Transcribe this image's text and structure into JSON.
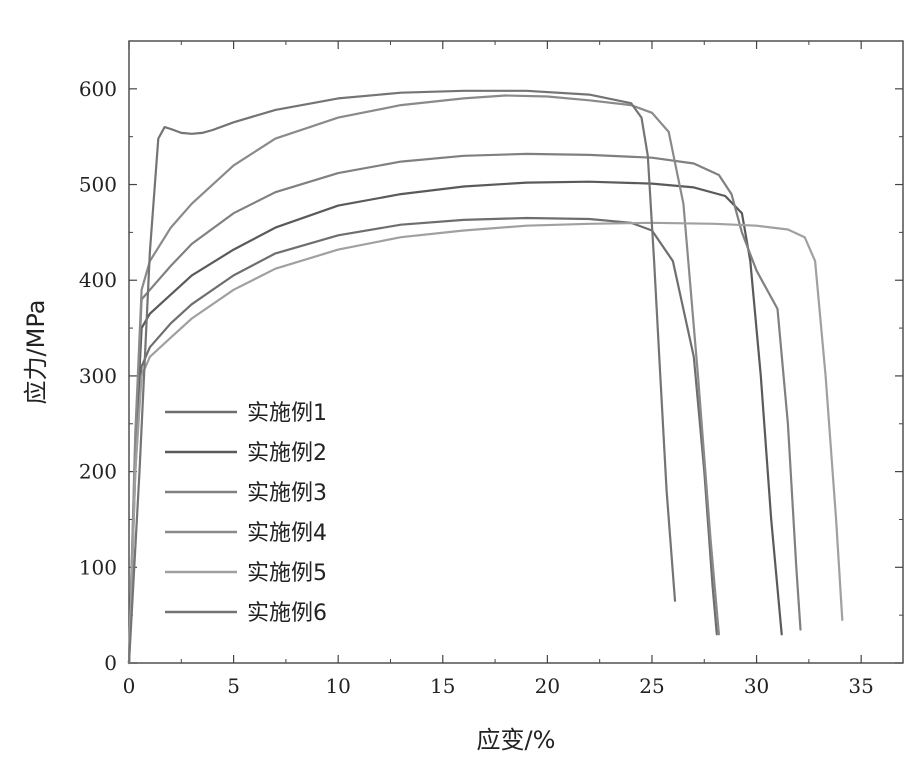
{
  "chart_data": {
    "type": "line",
    "xlabel": "应变/%",
    "ylabel": "应力/MPa",
    "xlim": [
      0,
      37
    ],
    "ylim": [
      0,
      650
    ],
    "xticks": [
      0,
      5,
      10,
      15,
      20,
      25,
      30,
      35
    ],
    "yticks": [
      0,
      100,
      200,
      300,
      400,
      500,
      600
    ],
    "xtick_labels": [
      "0",
      "5",
      "10",
      "15",
      "20",
      "25",
      "30",
      "35"
    ],
    "ytick_labels": [
      "0",
      "100",
      "200",
      "300",
      "400",
      "500",
      "600"
    ],
    "grid": false,
    "legend_position": "lower-left",
    "series": [
      {
        "name": "实施例1",
        "color": "#6e6e6e",
        "x": [
          0,
          0.3,
          0.6,
          1,
          2,
          3,
          5,
          7,
          10,
          13,
          16,
          19,
          22,
          24,
          25,
          26,
          27,
          27.5,
          27.9,
          28.1
        ],
        "y": [
          0,
          200,
          310,
          330,
          355,
          375,
          405,
          428,
          447,
          458,
          463,
          465,
          464,
          460,
          452,
          420,
          320,
          200,
          80,
          30
        ]
      },
      {
        "name": "实施例2",
        "color": "#5a5a5a",
        "x": [
          0,
          0.3,
          0.6,
          1,
          2,
          3,
          5,
          7,
          10,
          13,
          16,
          19,
          22,
          25,
          27,
          28.5,
          29.3,
          29.7,
          30.2,
          30.7,
          31.2
        ],
        "y": [
          0,
          220,
          350,
          365,
          385,
          405,
          432,
          455,
          478,
          490,
          498,
          502,
          503,
          501,
          497,
          488,
          470,
          420,
          300,
          150,
          30
        ]
      },
      {
        "name": "实施例3",
        "color": "#808080",
        "x": [
          0,
          0.3,
          0.6,
          1,
          2,
          3,
          5,
          7,
          10,
          13,
          16,
          19,
          22,
          25,
          27,
          28.2,
          28.8,
          29.3,
          30,
          31,
          31.5,
          31.9,
          32.1
        ],
        "y": [
          0,
          230,
          380,
          390,
          415,
          438,
          470,
          492,
          512,
          524,
          530,
          532,
          531,
          528,
          522,
          510,
          490,
          450,
          410,
          370,
          250,
          100,
          35
        ]
      },
      {
        "name": "实施例4",
        "color": "#8a8a8a",
        "x": [
          0,
          0.3,
          0.6,
          1,
          2,
          3,
          5,
          7,
          10,
          13,
          16,
          18,
          20,
          22,
          24,
          25,
          25.8,
          26.5,
          27.2,
          27.8,
          28.2
        ],
        "y": [
          0,
          240,
          390,
          420,
          455,
          480,
          520,
          548,
          570,
          583,
          590,
          593,
          592,
          588,
          583,
          575,
          555,
          480,
          300,
          130,
          30
        ]
      },
      {
        "name": "实施例5",
        "color": "#a0a0a0",
        "x": [
          0,
          0.3,
          0.6,
          1,
          2,
          3,
          5,
          7,
          10,
          13,
          16,
          19,
          22,
          25,
          28,
          30,
          31.5,
          32.3,
          32.8,
          33.3,
          33.8,
          34.1
        ],
        "y": [
          0,
          200,
          300,
          320,
          340,
          360,
          390,
          412,
          432,
          445,
          452,
          457,
          459,
          460,
          459,
          457,
          453,
          445,
          420,
          300,
          150,
          45
        ]
      },
      {
        "name": "实施例6",
        "color": "#747474",
        "x": [
          0,
          0.5,
          1,
          1.4,
          1.7,
          2,
          2.5,
          3,
          3.5,
          4,
          5,
          7,
          10,
          13,
          16,
          19,
          22,
          24,
          24.5,
          24.8,
          25.1,
          25.4,
          25.7,
          26.1
        ],
        "y": [
          0,
          200,
          430,
          548,
          560,
          558,
          554,
          553,
          554,
          557,
          565,
          578,
          590,
          596,
          598,
          598,
          594,
          585,
          570,
          530,
          420,
          300,
          180,
          65
        ]
      }
    ]
  }
}
